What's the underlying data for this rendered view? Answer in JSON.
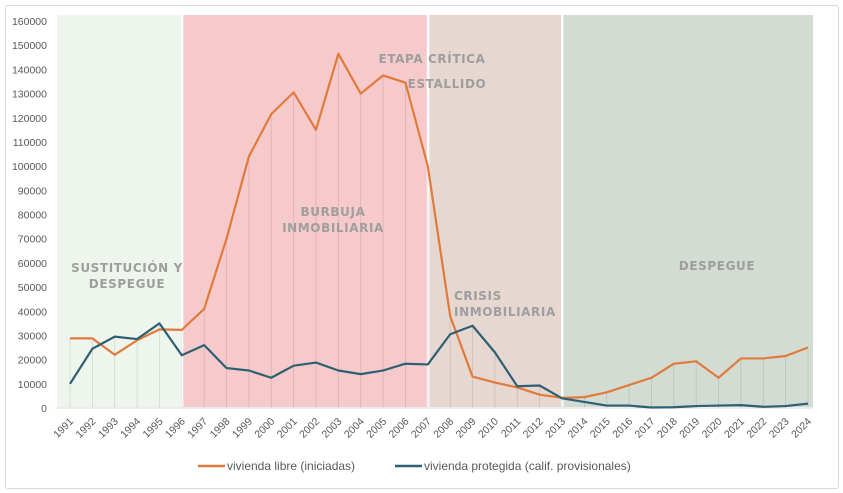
{
  "chart_data": {
    "type": "line",
    "title": "",
    "xlabel": "",
    "ylabel": "",
    "ylim": [
      0,
      160000
    ],
    "yticks": [
      0,
      10000,
      20000,
      30000,
      40000,
      50000,
      60000,
      70000,
      80000,
      90000,
      100000,
      110000,
      120000,
      130000,
      140000,
      150000,
      160000
    ],
    "grid": false,
    "legend_position": "bottom",
    "x": [
      1991,
      1992,
      1993,
      1994,
      1995,
      1996,
      1997,
      1998,
      1999,
      2000,
      2001,
      2002,
      2003,
      2004,
      2005,
      2006,
      2007,
      2008,
      2009,
      2010,
      2011,
      2012,
      2013,
      2014,
      2015,
      2016,
      2017,
      2018,
      2019,
      2020,
      2021,
      2022,
      2023,
      2024
    ],
    "series": [
      {
        "name": "vivienda libre (iniciadas)",
        "color": "#e07b3c",
        "values": [
          28800,
          28800,
          22000,
          28000,
          32500,
          32300,
          41000,
          70000,
          104000,
          121500,
          130500,
          115000,
          146500,
          130000,
          137500,
          134500,
          100000,
          38000,
          13000,
          10500,
          8500,
          5500,
          4200,
          4500,
          6500,
          9500,
          12500,
          18300,
          19300,
          12500,
          20500,
          20500,
          21500,
          25000
        ]
      },
      {
        "name": "vivienda protegida (calif. provisionales)",
        "color": "#2f5f72",
        "values": [
          10000,
          24500,
          29500,
          28500,
          35000,
          21800,
          26000,
          16500,
          15500,
          12500,
          17500,
          18800,
          15500,
          14000,
          15500,
          18300,
          18000,
          30500,
          34000,
          23000,
          9000,
          9300,
          4000,
          2500,
          1000,
          1000,
          200,
          300,
          800,
          1000,
          1200,
          500,
          800,
          1800
        ]
      }
    ],
    "regions": [
      {
        "label": [
          "SUSTITUCIÓN Y",
          "DESPEGUE"
        ],
        "from": 1991,
        "to": 1996,
        "color": "#eef5ec"
      },
      {
        "label": [
          "BURBUJA",
          "INMOBILIARIA"
        ],
        "from": 1996,
        "to": 2007,
        "color": "#f6caca"
      },
      {
        "label": [
          "CRISIS",
          "INMOBILIARIA"
        ],
        "from": 2007,
        "to": 2013,
        "color": "#e6d7d1"
      },
      {
        "label": [
          "DESPEGUE"
        ],
        "from": 2013,
        "to": 2024,
        "color": "#d3dcd3"
      }
    ],
    "annotations": [
      "ETAPA CRÍTICA",
      "ESTALLIDO"
    ]
  }
}
